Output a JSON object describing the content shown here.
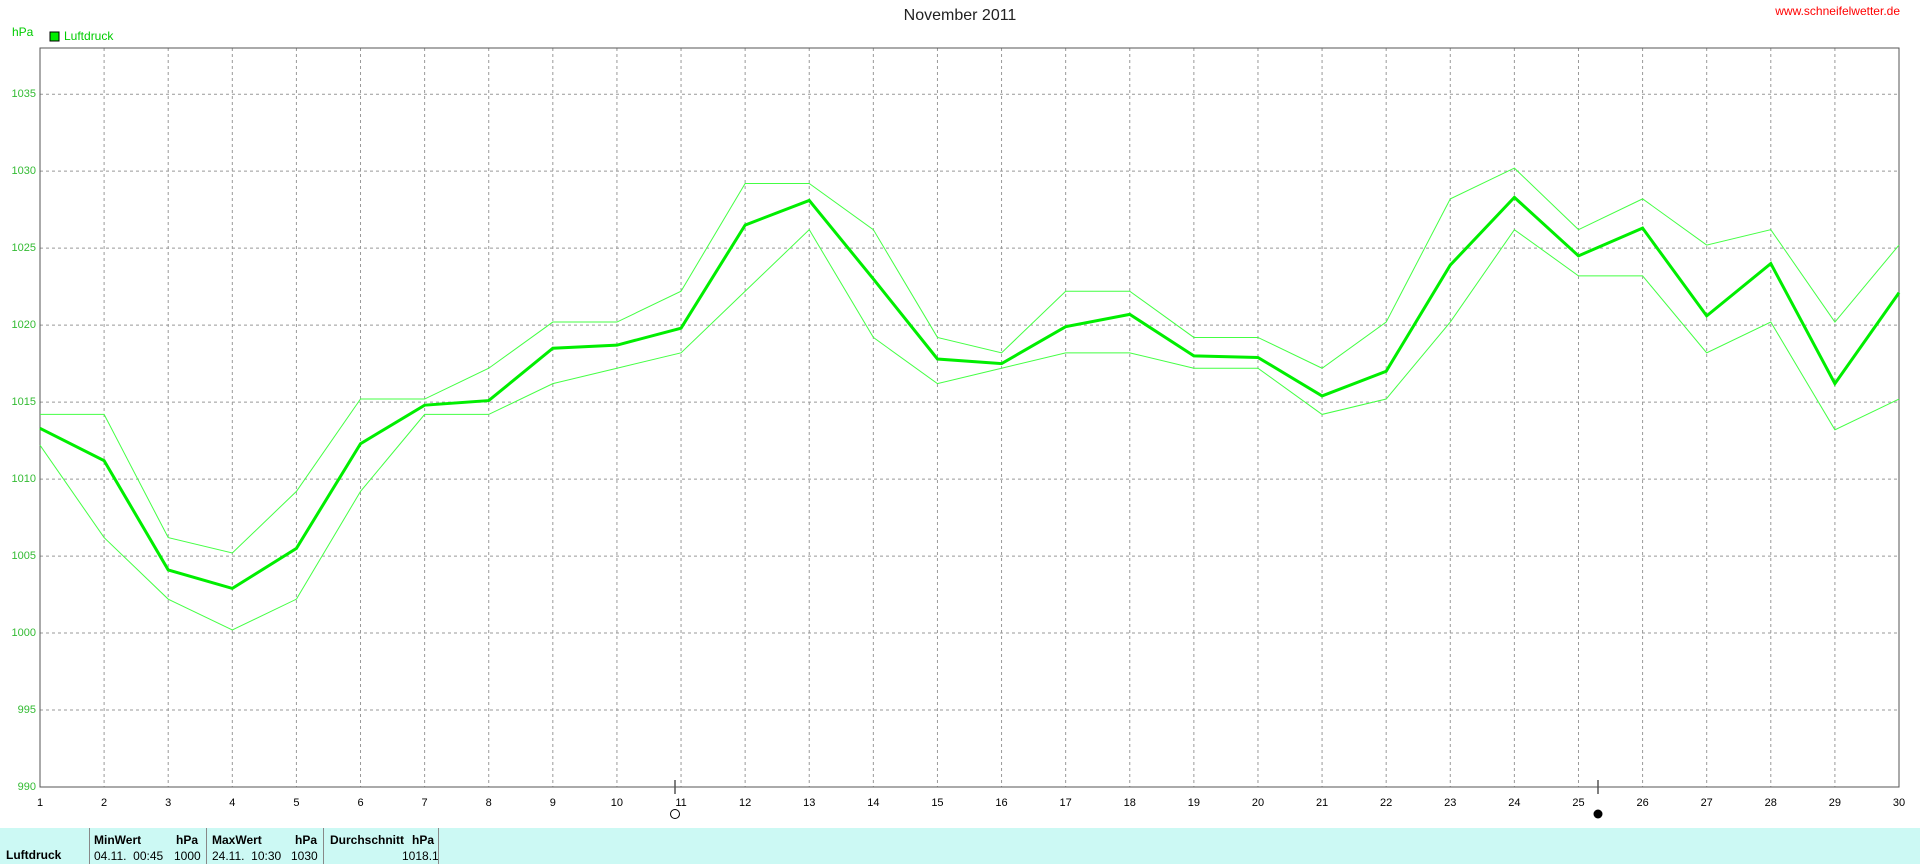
{
  "chart_data": {
    "type": "line",
    "title": "November 2011",
    "source": "www.schneifelwetter.de",
    "y_label": "hPa",
    "x": [
      1,
      2,
      3,
      4,
      5,
      6,
      7,
      8,
      9,
      10,
      11,
      12,
      13,
      14,
      15,
      16,
      17,
      18,
      19,
      20,
      21,
      22,
      23,
      24,
      25,
      26,
      27,
      28,
      29,
      30
    ],
    "series": [
      {
        "name": "Luftdruck",
        "color": "#00ee00",
        "width": 3,
        "values": [
          1013.3,
          1011.2,
          1004.1,
          1002.9,
          1005.5,
          1012.3,
          1014.8,
          1015.1,
          1018.5,
          1018.7,
          1019.8,
          1026.5,
          1028.1,
          1023,
          1017.8,
          1017.5,
          1019.9,
          1020.7,
          1018,
          1017.9,
          1015.4,
          1017,
          1023.9,
          1028.3,
          1024.5,
          1026.3,
          1020.6,
          1024,
          1016.2,
          1022.1
        ]
      },
      {
        "color": "#44ff44",
        "width": 1,
        "values": [
          1014.2,
          1014.2,
          1006.2,
          1005.2,
          1009.2,
          1015.2,
          1015.2,
          1017.2,
          1020.2,
          1020.2,
          1022.2,
          1029.2,
          1029.2,
          1026.2,
          1019.2,
          1018.2,
          1022.2,
          1022.2,
          1019.2,
          1019.2,
          1017.2,
          1020.2,
          1028.2,
          1030.2,
          1026.2,
          1028.2,
          1025.2,
          1026.2,
          1020.2,
          1025.2
        ]
      },
      {
        "color": "#44ff44",
        "width": 1,
        "values": [
          1012.2,
          1006.2,
          1002.2,
          1000.2,
          1002.2,
          1009.2,
          1014.2,
          1014.2,
          1016.2,
          1017.2,
          1018.2,
          1022.2,
          1026.2,
          1019.2,
          1016.2,
          1017.2,
          1018.2,
          1018.2,
          1017.2,
          1017.2,
          1014.2,
          1015.2,
          1020.2,
          1026.2,
          1023.2,
          1023.2,
          1018.2,
          1020.2,
          1013.2,
          1015.2
        ]
      }
    ],
    "xlim": [
      1,
      30
    ],
    "xticks": [
      1,
      2,
      3,
      4,
      5,
      6,
      7,
      8,
      9,
      10,
      11,
      12,
      13,
      14,
      15,
      16,
      17,
      18,
      19,
      20,
      21,
      22,
      23,
      24,
      25,
      26,
      27,
      28,
      29,
      30
    ],
    "ylim": [
      990,
      1038
    ],
    "yticks": [
      990,
      995,
      1000,
      1005,
      1010,
      1015,
      1020,
      1025,
      1030,
      1035
    ],
    "grid": true
  },
  "summary": {
    "label": "Luftdruck",
    "min": {
      "header": "MinWert",
      "unit": "hPa",
      "time": "04.11.  00:45",
      "value": "1000"
    },
    "max": {
      "header": "MaxWert",
      "unit": "hPa",
      "time": "24.11.  10:30",
      "value": "1030"
    },
    "avg": {
      "header": "Durchschnitt",
      "unit": "hPa",
      "value": "1018.1"
    }
  }
}
